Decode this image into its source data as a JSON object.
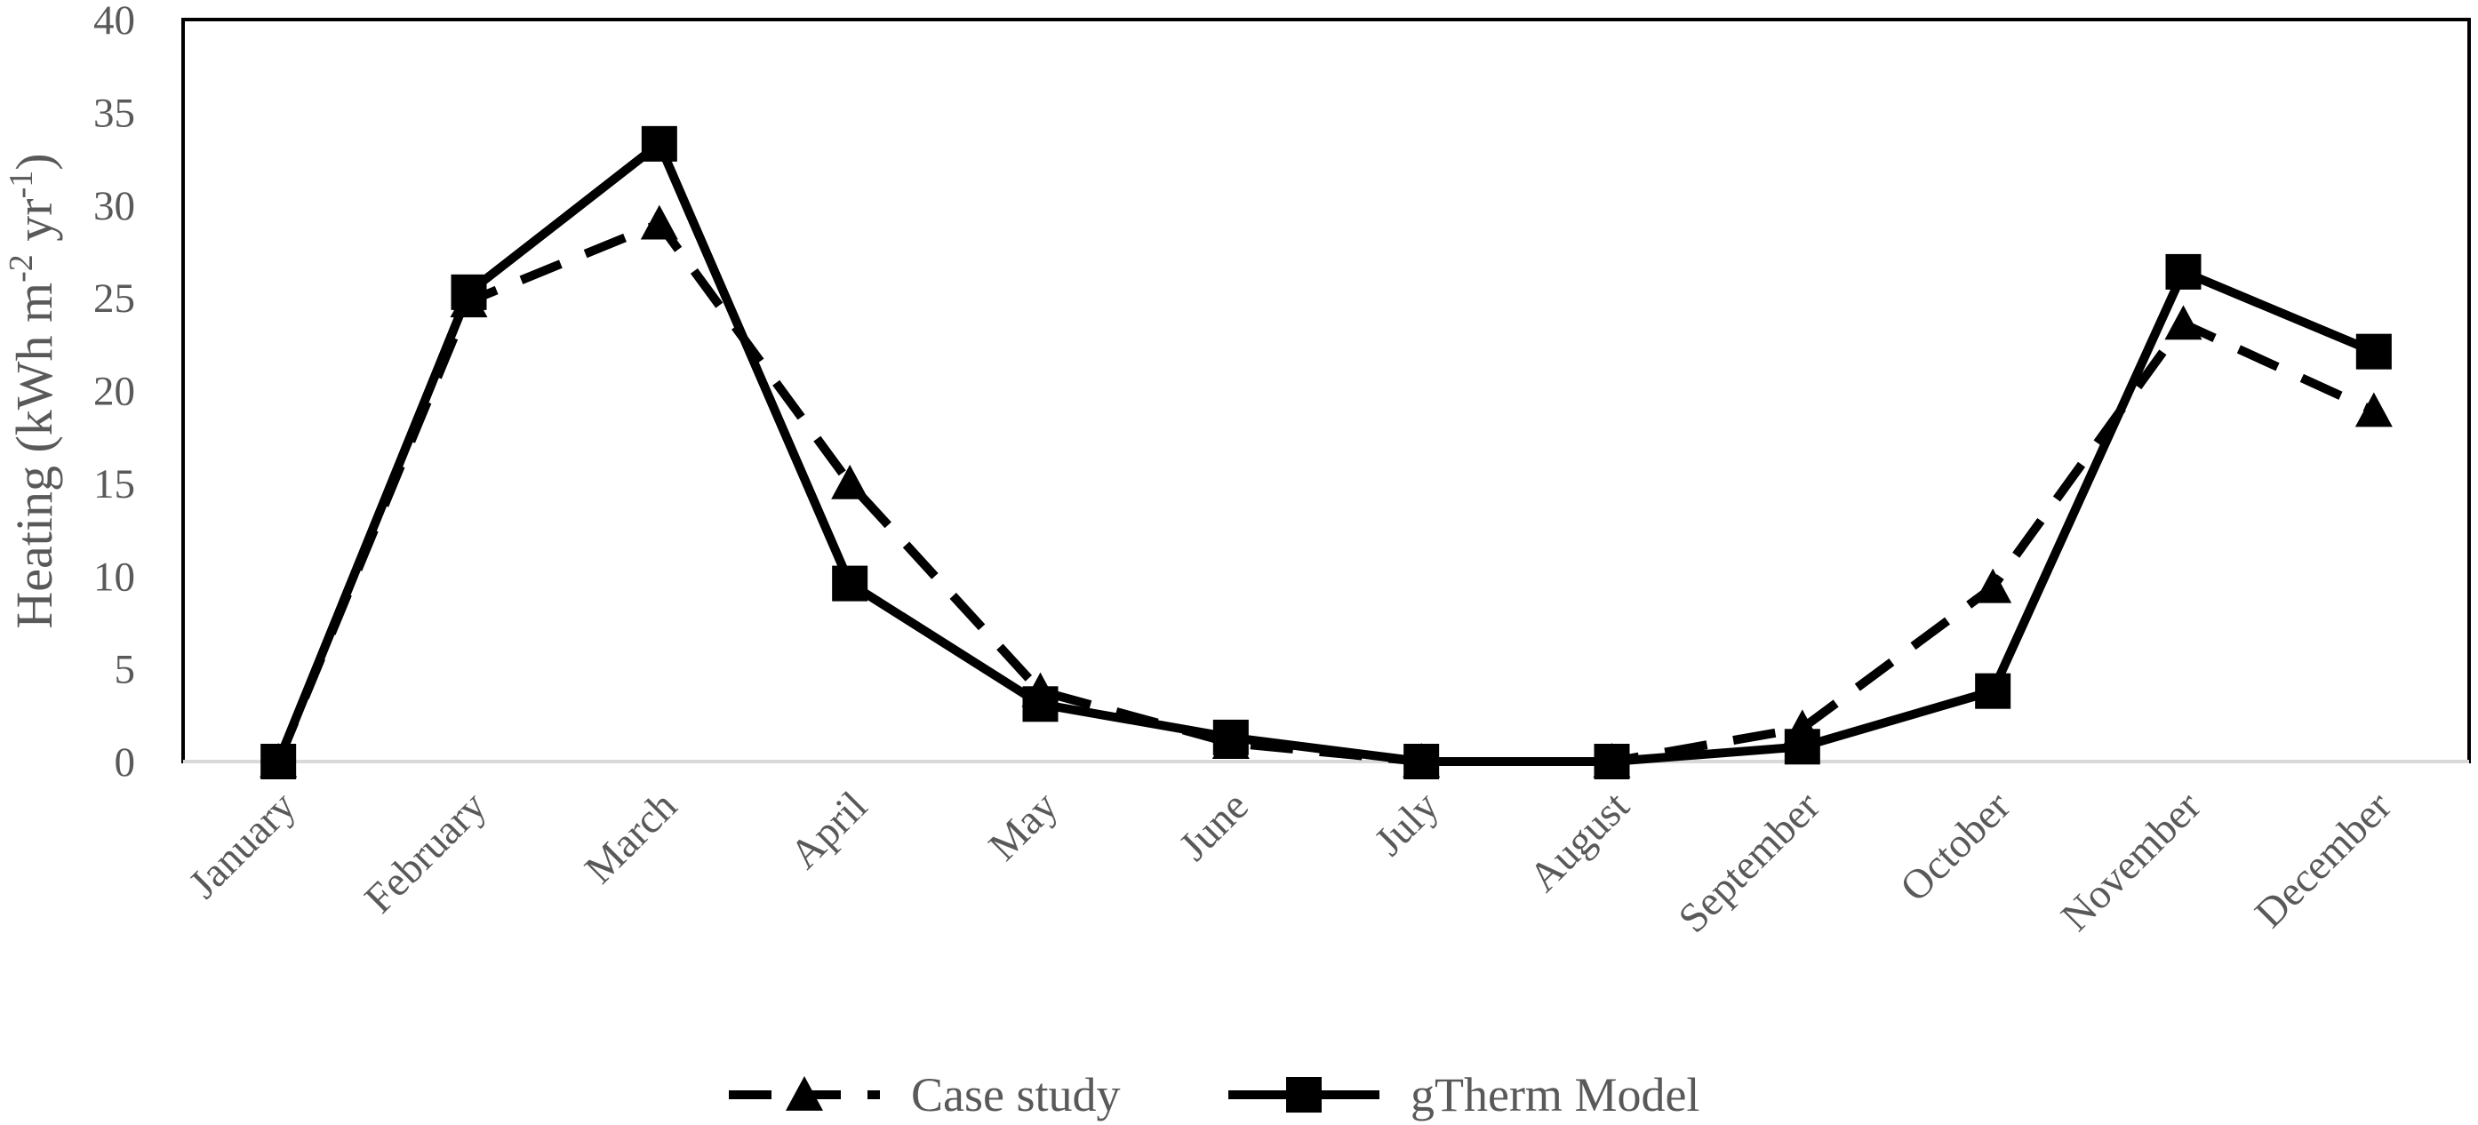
{
  "chart_data": {
    "type": "line",
    "categories": [
      "January",
      "February",
      "March",
      "April",
      "May",
      "June",
      "July",
      "August",
      "September",
      "October",
      "November",
      "December"
    ],
    "series": [
      {
        "name": "Case study",
        "style": "dashed",
        "marker": "triangle",
        "color": "#000000",
        "values": [
          0,
          24.8,
          29,
          15,
          3.8,
          1,
          0,
          0,
          1.8,
          9.4,
          23.6,
          18.9
        ]
      },
      {
        "name": "gTherm Model",
        "style": "solid",
        "marker": "square",
        "color": "#000000",
        "values": [
          0,
          25.3,
          33.3,
          9.6,
          3.1,
          1.3,
          0,
          0,
          0.8,
          3.8,
          26.4,
          22.1
        ]
      }
    ],
    "ylabel_main": "Heating (kWh m",
    "ylabel_sup1": "-2",
    "ylabel_mid": " yr",
    "ylabel_sup2": "-1",
    "ylabel_end": ")",
    "yticks": [
      "0",
      "5",
      "10",
      "15",
      "20",
      "25",
      "30",
      "35",
      "40"
    ],
    "ylim": [
      0,
      40
    ],
    "grid": false,
    "legend_position": "bottom"
  }
}
